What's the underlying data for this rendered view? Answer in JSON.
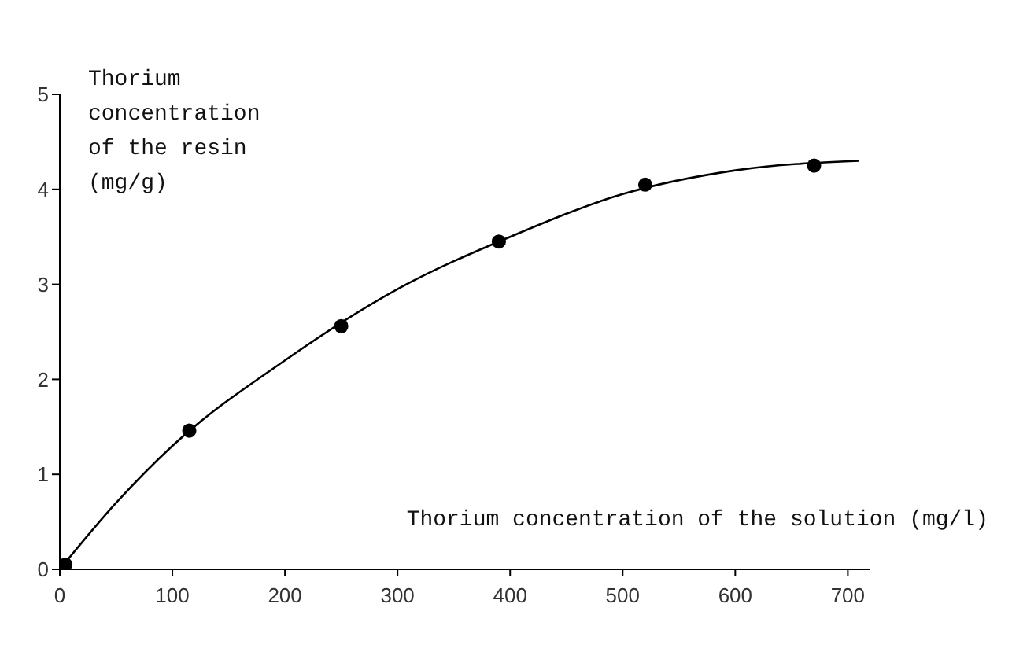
{
  "chart_data": {
    "type": "scatter",
    "xlabel": "Thorium concentration of the solution (mg/l)",
    "ylabel": "Thorium concentration of the resin (mg/g)",
    "xlim": [
      0,
      720
    ],
    "xticks": [
      0,
      100,
      200,
      300,
      400,
      500,
      600,
      700
    ],
    "ylim": [
      0,
      5
    ],
    "yticks": [
      0,
      1,
      2,
      3,
      4,
      5
    ],
    "series": [
      {
        "type": "scatter",
        "marker": "circle",
        "color": "#000000",
        "x": [
          5,
          115,
          250,
          390,
          520,
          670
        ],
        "values": [
          0.05,
          1.46,
          2.56,
          3.45,
          4.05,
          4.25
        ]
      },
      {
        "type": "line",
        "marker": "none",
        "line_style": "solid",
        "color": "#000000",
        "x": [
          0,
          50,
          100,
          200,
          300,
          400,
          500,
          600,
          710
        ],
        "values": [
          0,
          0.7,
          1.3,
          2.2,
          2.95,
          3.5,
          3.95,
          4.2,
          4.3
        ]
      }
    ]
  }
}
